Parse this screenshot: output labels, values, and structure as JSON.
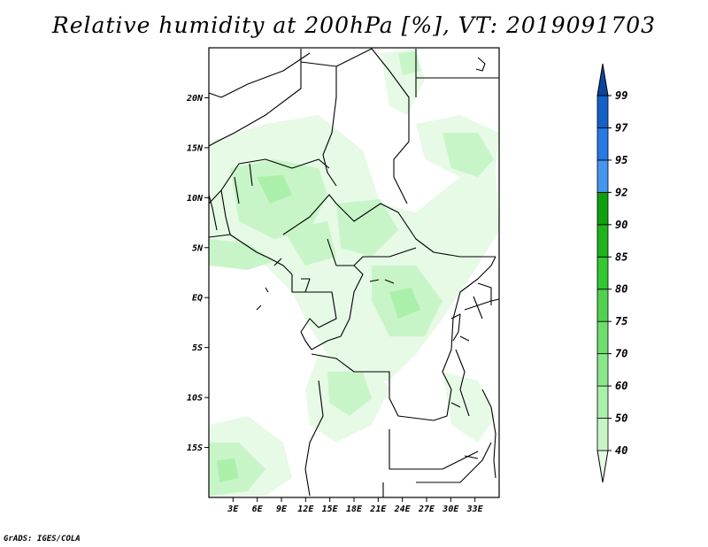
{
  "title": "Relative humidity at 200hPa [%], VT: 2019091703",
  "credit": "GrADS: IGES/COLA",
  "map": {
    "lon_range": [
      0,
      36
    ],
    "lat_range": [
      -20,
      25
    ],
    "lon_ticks": [
      {
        "value": 3,
        "label": "3E"
      },
      {
        "value": 6,
        "label": "6E"
      },
      {
        "value": 9,
        "label": "9E"
      },
      {
        "value": 12,
        "label": "12E"
      },
      {
        "value": 15,
        "label": "15E"
      },
      {
        "value": 18,
        "label": "18E"
      },
      {
        "value": 21,
        "label": "21E"
      },
      {
        "value": 24,
        "label": "24E"
      },
      {
        "value": 27,
        "label": "27E"
      },
      {
        "value": 30,
        "label": "30E"
      },
      {
        "value": 33,
        "label": "33E"
      }
    ],
    "lat_ticks": [
      {
        "value": 20,
        "label": "20N"
      },
      {
        "value": 15,
        "label": "15N"
      },
      {
        "value": 10,
        "label": "10N"
      },
      {
        "value": 5,
        "label": "5N"
      },
      {
        "value": 0,
        "label": "EQ"
      },
      {
        "value": -5,
        "label": "5S"
      },
      {
        "value": -10,
        "label": "10S"
      },
      {
        "value": -15,
        "label": "15S"
      }
    ]
  },
  "colorbar": {
    "levels": [
      "40",
      "50",
      "60",
      "70",
      "75",
      "80",
      "85",
      "90",
      "92",
      "95",
      "97",
      "99"
    ],
    "colors": [
      "#e6fae6",
      "#c8f5c8",
      "#aaf0aa",
      "#8ce68c",
      "#6edc6e",
      "#50d250",
      "#32c832",
      "#1eb41e",
      "#0fa00f",
      "#4696f0",
      "#2878e6",
      "#1460c8",
      "#0a46a0"
    ]
  }
}
